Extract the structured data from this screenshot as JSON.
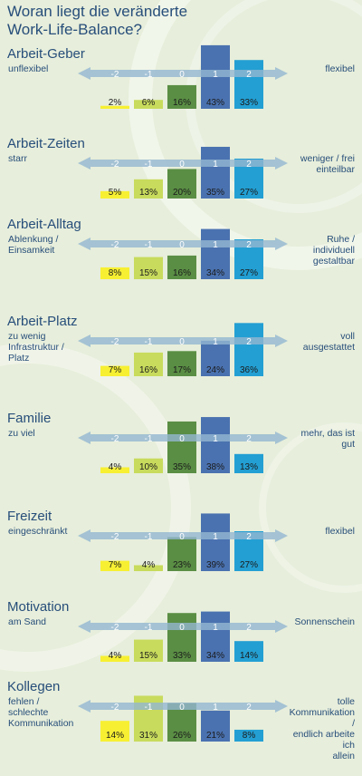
{
  "title": "Woran liegt die veränderte Work-Life-Balance?",
  "colors": {
    "background": "#e7eedb",
    "text": "#274e7a",
    "arrow": "#93b7d1",
    "bars": [
      "#f7f032",
      "#c8db5c",
      "#5a8e44",
      "#4a72b0",
      "#239fd3"
    ]
  },
  "chart_data": [
    {
      "type": "bar",
      "title": "Arbeit-Geber",
      "categories": [
        "-2",
        "-1",
        "0",
        "1",
        "2"
      ],
      "values": [
        2,
        6,
        16,
        43,
        33
      ],
      "value_labels": [
        "2%",
        "6%",
        "16%",
        "43%",
        "33%"
      ],
      "label_left": "unflexibel",
      "label_right": "flexibel"
    },
    {
      "type": "bar",
      "title": "Arbeit-Zeiten",
      "categories": [
        "-2",
        "-1",
        "0",
        "1",
        "2"
      ],
      "values": [
        5,
        13,
        20,
        35,
        27
      ],
      "value_labels": [
        "5%",
        "13%",
        "20%",
        "35%",
        "27%"
      ],
      "label_left": "starr",
      "label_right": "weniger / frei\neinteilbar"
    },
    {
      "type": "bar",
      "title": "Arbeit-Alltag",
      "categories": [
        "-2",
        "-1",
        "0",
        "1",
        "2"
      ],
      "values": [
        8,
        15,
        16,
        34,
        27
      ],
      "value_labels": [
        "8%",
        "15%",
        "16%",
        "34%",
        "27%"
      ],
      "label_left": "Ablenkung /\nEinsamkeit",
      "label_right": "Ruhe /\nindividuell\ngestaltbar"
    },
    {
      "type": "bar",
      "title": "Arbeit-Platz",
      "categories": [
        "-2",
        "-1",
        "0",
        "1",
        "2"
      ],
      "values": [
        7,
        16,
        17,
        24,
        36
      ],
      "value_labels": [
        "7%",
        "16%",
        "17%",
        "24%",
        "36%"
      ],
      "label_left": "zu wenig\nInfrastruktur /\nPlatz",
      "label_right": "voll\nausgestattet"
    },
    {
      "type": "bar",
      "title": "Familie",
      "categories": [
        "-2",
        "-1",
        "0",
        "1",
        "2"
      ],
      "values": [
        4,
        10,
        35,
        38,
        13
      ],
      "value_labels": [
        "4%",
        "10%",
        "35%",
        "38%",
        "13%"
      ],
      "label_left": "zu viel",
      "label_right": "mehr, das ist\ngut"
    },
    {
      "type": "bar",
      "title": "Freizeit",
      "categories": [
        "-2",
        "-1",
        "0",
        "1",
        "2"
      ],
      "values": [
        7,
        4,
        23,
        39,
        27
      ],
      "value_labels": [
        "7%",
        "4%",
        "23%",
        "39%",
        "27%"
      ],
      "label_left": "eingeschränkt",
      "label_right": "flexibel"
    },
    {
      "type": "bar",
      "title": "Motivation",
      "categories": [
        "-2",
        "-1",
        "0",
        "1",
        "2"
      ],
      "values": [
        4,
        15,
        33,
        34,
        14
      ],
      "value_labels": [
        "4%",
        "15%",
        "33%",
        "34%",
        "14%"
      ],
      "label_left": "am Sand",
      "label_right": "Sonnenschein"
    },
    {
      "type": "bar",
      "title": "Kollegen",
      "categories": [
        "-2",
        "-1",
        "0",
        "1",
        "2"
      ],
      "values": [
        14,
        31,
        26,
        21,
        8
      ],
      "value_labels": [
        "14%",
        "31%",
        "26%",
        "21%",
        "8%"
      ],
      "label_left": "fehlen /\nschlechte\nKommunikation",
      "label_right": "tolle\nKommunikation /\nendlich arbeite ich\nallein"
    }
  ]
}
